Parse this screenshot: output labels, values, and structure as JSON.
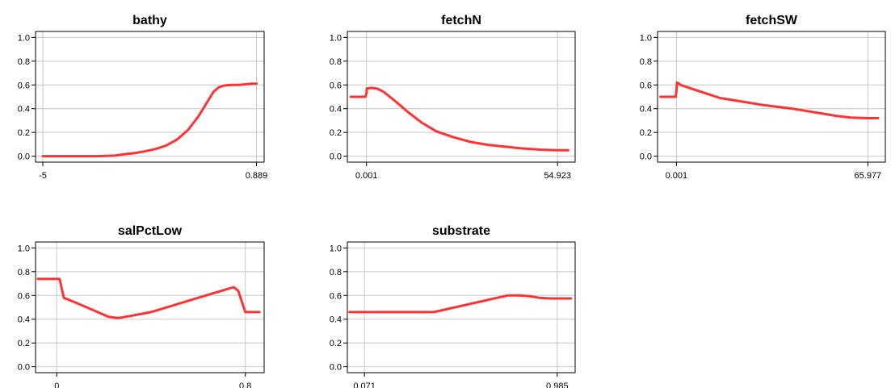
{
  "chart_data": [
    {
      "type": "line",
      "title": "bathy",
      "xlabel": "",
      "ylabel": "",
      "ylim": [
        -0.05,
        1.05
      ],
      "yticks": [
        "0.0",
        "0.2",
        "0.4",
        "0.6",
        "0.8",
        "1.0"
      ],
      "xlim": [
        -5.2,
        1.1
      ],
      "xticks": [
        "-5",
        "0.889"
      ],
      "grid": true,
      "series_color": "#ff3333",
      "x": [
        -5,
        -4.5,
        -4.0,
        -3.5,
        -3.0,
        -2.8,
        -2.5,
        -2.2,
        -1.9,
        -1.6,
        -1.3,
        -1.0,
        -0.7,
        -0.5,
        -0.3,
        -0.15,
        0.0,
        0.2,
        0.4,
        0.6,
        0.75,
        0.889
      ],
      "y": [
        0.0,
        0.0,
        0.0,
        0.0,
        0.005,
        0.015,
        0.025,
        0.04,
        0.06,
        0.09,
        0.14,
        0.22,
        0.34,
        0.44,
        0.54,
        0.58,
        0.595,
        0.6,
        0.6,
        0.605,
        0.61,
        0.61
      ]
    },
    {
      "type": "line",
      "title": "fetchN",
      "xlabel": "",
      "ylabel": "",
      "ylim": [
        -0.05,
        1.05
      ],
      "yticks": [
        "0.0",
        "0.2",
        "0.4",
        "0.6",
        "0.8",
        "1.0"
      ],
      "xlim": [
        -5.5,
        60.0
      ],
      "xticks": [
        "0.001",
        "54.923"
      ],
      "grid": true,
      "series_color": "#ff3333",
      "x": [
        -4.5,
        -3.0,
        -1.5,
        -0.3,
        0.001,
        0.1,
        1.5,
        3.0,
        5.0,
        8.0,
        12.0,
        16.0,
        20.0,
        25.0,
        30.0,
        35.0,
        40.0,
        45.0,
        50.0,
        54.923,
        58.0
      ],
      "y": [
        0.5,
        0.5,
        0.5,
        0.5,
        0.53,
        0.57,
        0.575,
        0.57,
        0.54,
        0.47,
        0.37,
        0.28,
        0.21,
        0.16,
        0.12,
        0.095,
        0.08,
        0.065,
        0.055,
        0.05,
        0.05
      ]
    },
    {
      "type": "line",
      "title": "fetchSW",
      "xlabel": "",
      "ylabel": "",
      "ylim": [
        -0.05,
        1.05
      ],
      "yticks": [
        "0.0",
        "0.2",
        "0.4",
        "0.6",
        "0.8",
        "1.0"
      ],
      "xlim": [
        -6.5,
        72.0
      ],
      "xticks": [
        "0.001",
        "65.977"
      ],
      "grid": true,
      "series_color": "#ff3333",
      "x": [
        -5.5,
        -3.5,
        -1.5,
        -0.2,
        0.001,
        0.2,
        1.5,
        5.0,
        10.0,
        15.0,
        20.0,
        30.0,
        40.0,
        50.0,
        55.0,
        60.0,
        65.977,
        69.5
      ],
      "y": [
        0.5,
        0.5,
        0.5,
        0.5,
        0.55,
        0.62,
        0.6,
        0.57,
        0.53,
        0.49,
        0.47,
        0.43,
        0.4,
        0.36,
        0.34,
        0.325,
        0.32,
        0.32
      ]
    },
    {
      "type": "line",
      "title": "salPctLow",
      "xlabel": "",
      "ylabel": "",
      "ylim": [
        -0.05,
        1.05
      ],
      "yticks": [
        "0.0",
        "0.2",
        "0.4",
        "0.6",
        "0.8",
        "1.0"
      ],
      "xlim": [
        -0.09,
        0.88
      ],
      "xticks": [
        "0",
        "0.8"
      ],
      "grid": true,
      "series_color": "#ff3333",
      "x": [
        -0.08,
        -0.04,
        0.0,
        0.012,
        0.03,
        0.08,
        0.15,
        0.22,
        0.26,
        0.32,
        0.4,
        0.5,
        0.6,
        0.7,
        0.75,
        0.77,
        0.8,
        0.84,
        0.86
      ],
      "y": [
        0.74,
        0.74,
        0.74,
        0.74,
        0.58,
        0.54,
        0.48,
        0.42,
        0.41,
        0.43,
        0.46,
        0.52,
        0.58,
        0.64,
        0.67,
        0.64,
        0.46,
        0.46,
        0.46
      ]
    },
    {
      "type": "line",
      "title": "substrate",
      "xlabel": "",
      "ylabel": "",
      "ylim": [
        -0.05,
        1.05
      ],
      "yticks": [
        "0.0",
        "0.2",
        "0.4",
        "0.6",
        "0.8",
        "1.0"
      ],
      "xlim": [
        -0.01,
        1.07
      ],
      "xticks": [
        "0.071",
        "0.985"
      ],
      "grid": true,
      "series_color": "#ff3333",
      "x": [
        0.0,
        0.15,
        0.3,
        0.4,
        0.5,
        0.6,
        0.7,
        0.75,
        0.8,
        0.85,
        0.9,
        0.95,
        1.0,
        1.05
      ],
      "y": [
        0.46,
        0.46,
        0.46,
        0.46,
        0.5,
        0.54,
        0.58,
        0.6,
        0.6,
        0.595,
        0.58,
        0.575,
        0.575,
        0.575
      ]
    }
  ]
}
